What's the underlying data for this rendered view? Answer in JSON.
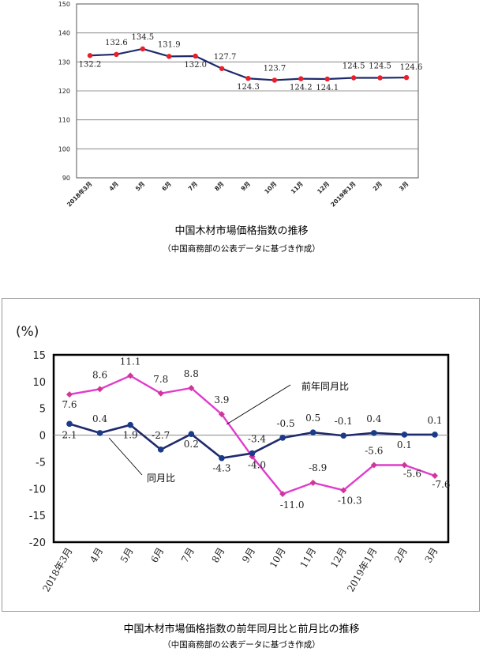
{
  "chart_data": [
    {
      "type": "line",
      "categories": [
        "2018年3月",
        "4月",
        "5月",
        "6月",
        "7月",
        "8月",
        "9月",
        "10月",
        "11月",
        "12月",
        "2019年1月",
        "2月",
        "3月"
      ],
      "series": [
        {
          "values": [
            132.2,
            132.6,
            134.5,
            131.9,
            132.0,
            127.7,
            124.3,
            123.7,
            124.2,
            124.1,
            124.5,
            124.5,
            124.6
          ]
        }
      ],
      "data_labels": [
        "132.2",
        "132.6",
        "134.5",
        "131.9",
        "132.0",
        "127.7",
        "124.3",
        "123.7",
        "124.2",
        "124.1",
        "124.5",
        "124.5",
        "124.6"
      ],
      "yticks": [
        "150",
        "140",
        "130",
        "120",
        "110",
        "100",
        "90"
      ],
      "ylim": [
        90,
        150
      ],
      "title": "中国木材市場価格指数の推移",
      "subtitle": "（中国商務部の公表データに基づき作成）",
      "grid": true,
      "colors": {
        "line": "#1f2a6b",
        "marker": "#e8202a"
      }
    },
    {
      "type": "line",
      "ylabel": "(%)",
      "categories": [
        "2018年3月",
        "4月",
        "5月",
        "6月",
        "7月",
        "8月",
        "9月",
        "10月",
        "11月",
        "12月",
        "2019年1月",
        "2月",
        "3月"
      ],
      "series": [
        {
          "name": "前年同月比",
          "values": [
            7.6,
            8.6,
            11.1,
            7.8,
            8.8,
            3.9,
            -4.0,
            -11.0,
            -8.9,
            -10.3,
            -5.6,
            -5.6,
            -7.6
          ],
          "labels": [
            "7.6",
            "8.6",
            "11.1",
            "7.8",
            "8.8",
            "3.9",
            "-4.0",
            "-11.0",
            "-8.9",
            "-10.3",
            "-5.6",
            "-5.6",
            "-7.6"
          ]
        },
        {
          "name": "同月比",
          "values": [
            2.1,
            0.4,
            1.9,
            -2.7,
            0.2,
            -4.3,
            -3.4,
            -0.5,
            0.5,
            -0.1,
            0.4,
            0.1,
            0.1
          ],
          "labels": [
            "2.1",
            "0.4",
            "1.9",
            "-2.7",
            "0.2",
            "-4.3",
            "-3.4",
            "-0.5",
            "0.5",
            "-0.1",
            "0.4",
            "0.1",
            "0.1"
          ]
        }
      ],
      "yticks": [
        "15",
        "10",
        "5",
        "0",
        "-5",
        "-10",
        "-15",
        "-20"
      ],
      "ylim": [
        -20,
        15
      ],
      "grid": false,
      "title": "中国木材市場価格指数の前年同月比と前月比の推移",
      "subtitle": "（中国商務部の公表データに基づき作成）",
      "colors": {
        "yoy": "#e03ccc",
        "yoy_marker": "#d0359a",
        "mom": "#1f2a6b",
        "mom_marker": "#1a3a8a",
        "zero_line": "#888888"
      }
    }
  ]
}
